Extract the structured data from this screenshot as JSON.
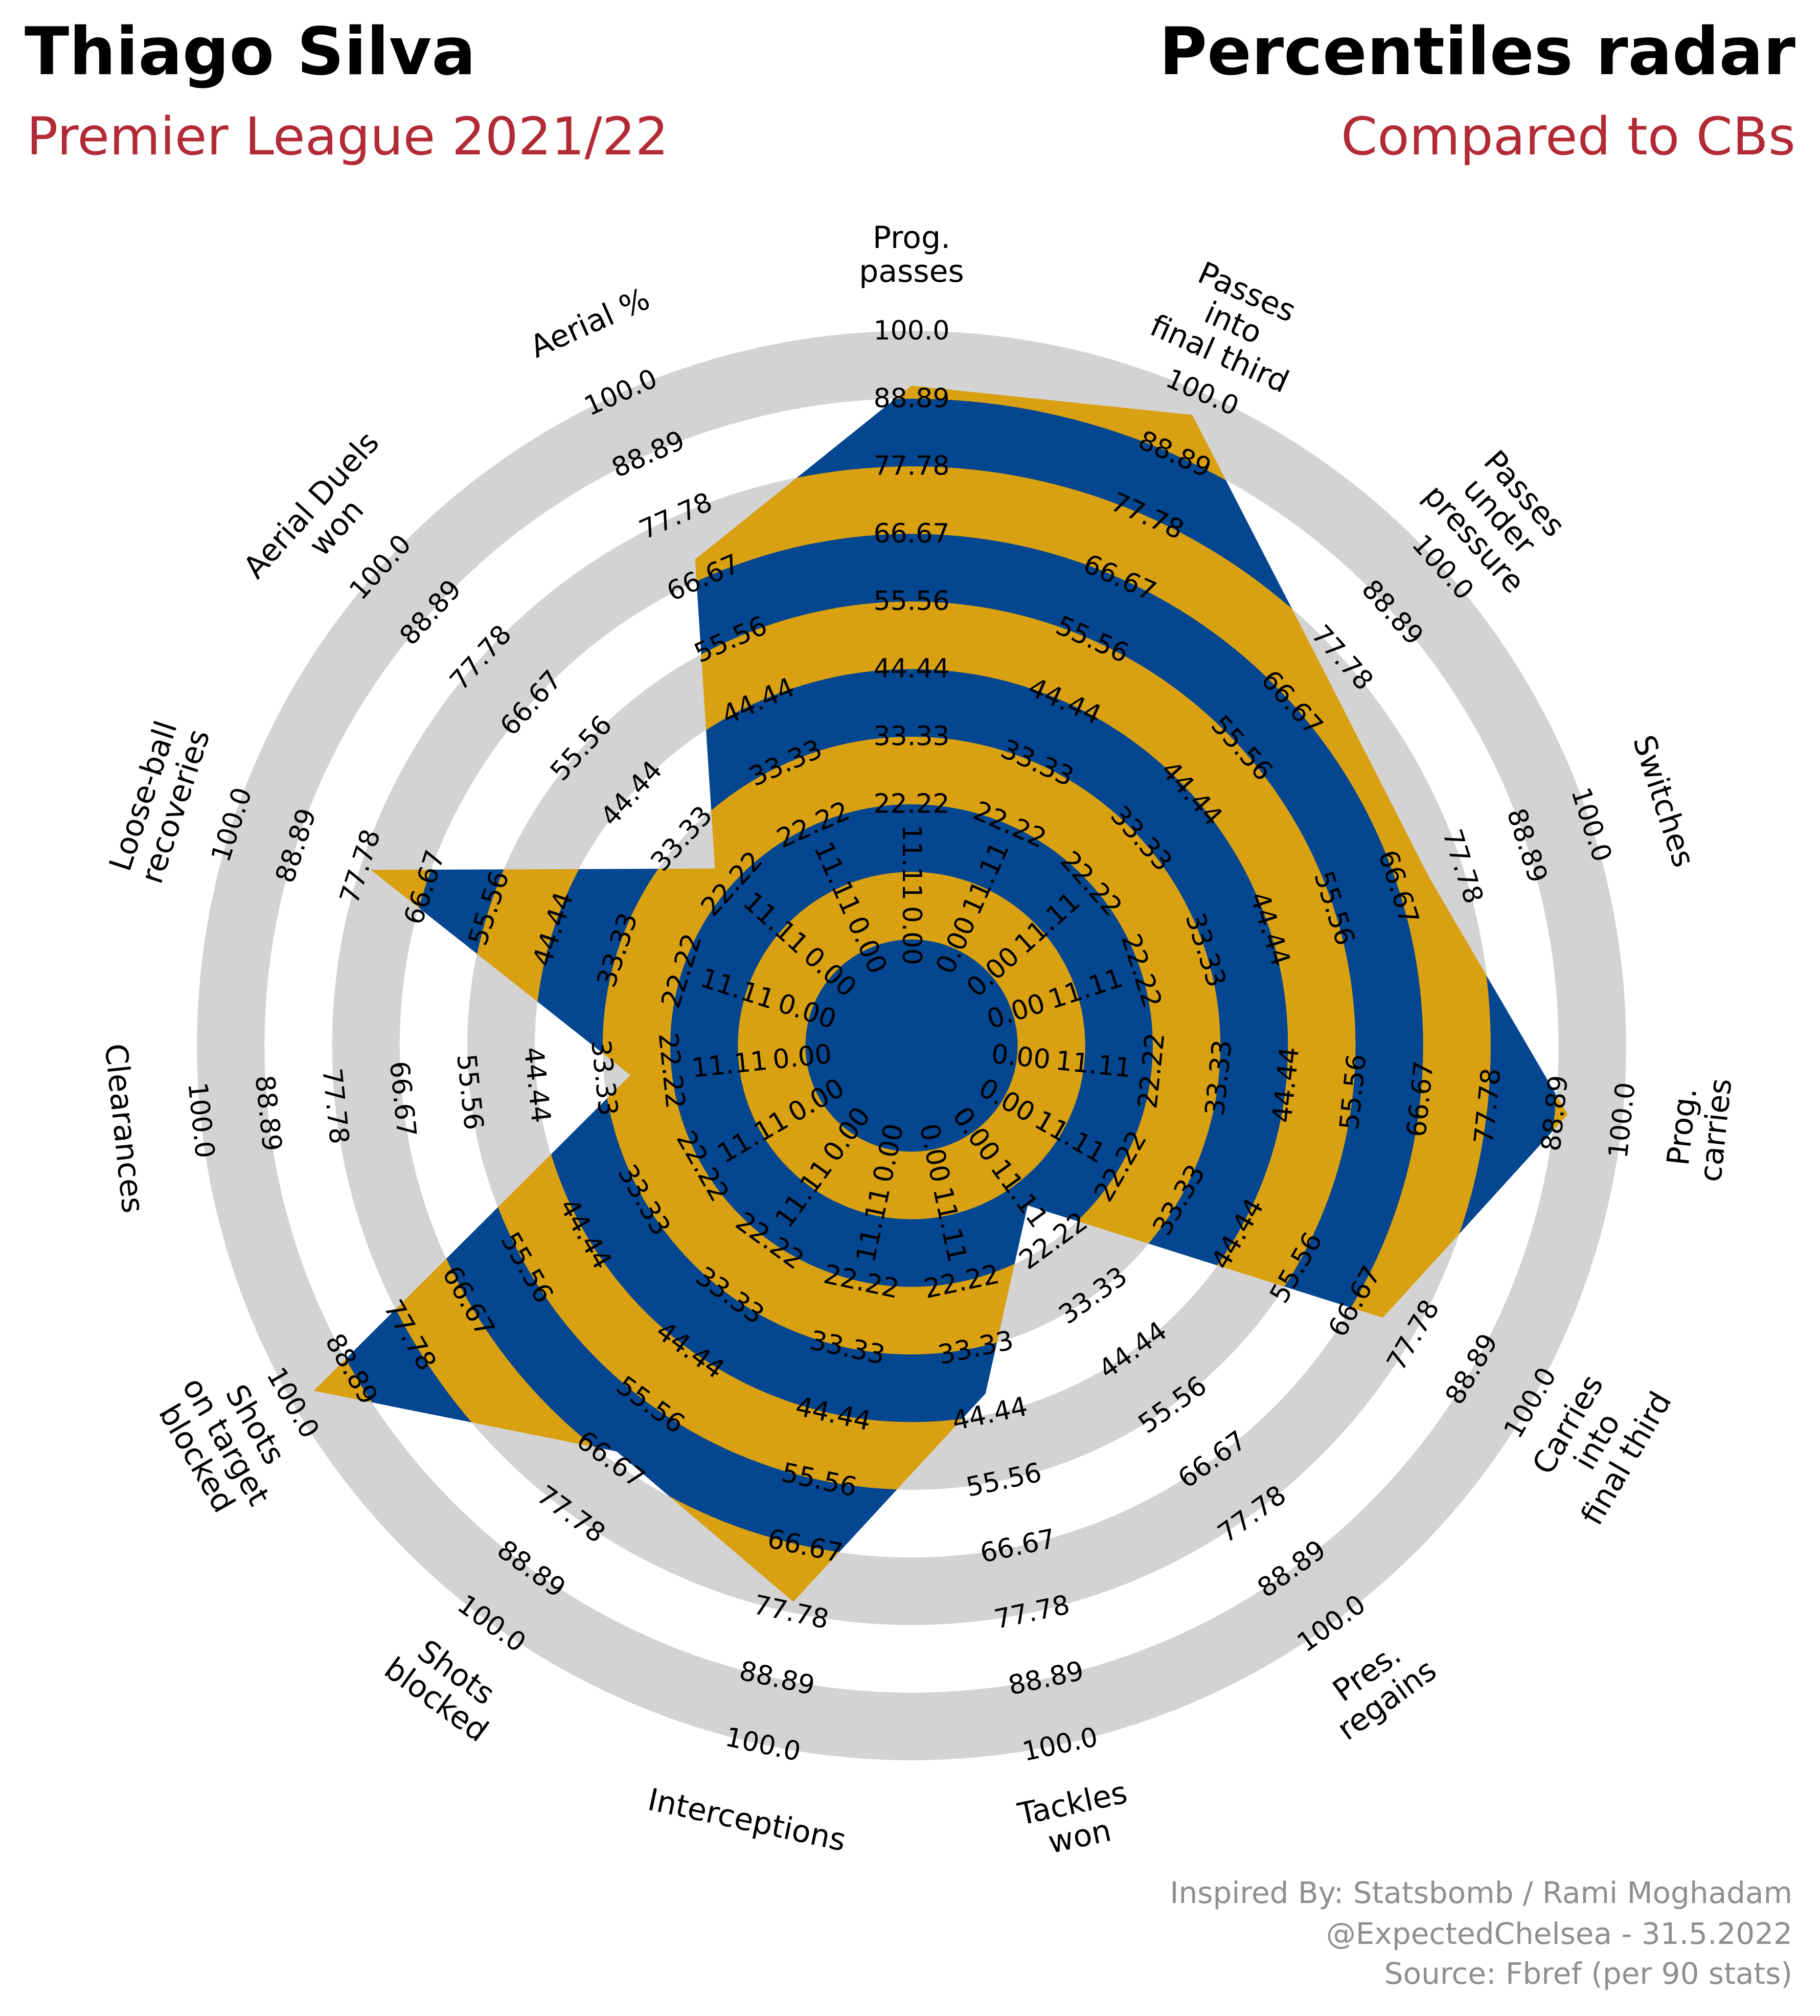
{
  "header": {
    "player": "Thiago Silva",
    "competition": "Premier League 2021/22",
    "chart_title": "Percentiles radar",
    "comparison": "Compared to CBs"
  },
  "footer": {
    "line1": "Inspired By: Statsbomb / Rami Moghadam",
    "line2": "@ExpectedChelsea - 31.5.2022",
    "line3": "Source: Fbref (per 90 stats)"
  },
  "colors": {
    "fill_a": "#04468f",
    "fill_b": "#d9a012",
    "ring": "#d3d3d3",
    "accent": "#b22a35",
    "footer": "#8e8e93"
  },
  "chart_data": {
    "type": "radar",
    "title": "Percentiles radar",
    "range": [
      0,
      100
    ],
    "ring_labels": [
      "0.00",
      "11.11",
      "22.22",
      "33.33",
      "44.44",
      "55.56",
      "66.67",
      "77.78",
      "88.89",
      "100.0"
    ],
    "parameters": [
      {
        "label": [
          "Prog.",
          "passes"
        ],
        "value": 91
      },
      {
        "label": [
          "Passes",
          "into",
          "final third"
        ],
        "value": 96
      },
      {
        "label": [
          "Passes",
          "under",
          "pressure"
        ],
        "value": 74
      },
      {
        "label": [
          "Switches"
        ],
        "value": 72
      },
      {
        "label": [
          "Prog.",
          "carries"
        ],
        "value": 91
      },
      {
        "label": [
          "Carries",
          "into",
          "final third"
        ],
        "value": 72
      },
      {
        "label": [
          "Pres.",
          "regains"
        ],
        "value": 15
      },
      {
        "label": [
          "Tackles",
          "won"
        ],
        "value": 41
      },
      {
        "label": [
          "Interceptions"
        ],
        "value": 76
      },
      {
        "label": [
          "Shots",
          "blocked"
        ],
        "value": 65
      },
      {
        "label": [
          "Shots",
          "on target",
          "blocked"
        ],
        "value": 96
      },
      {
        "label": [
          "Clearances"
        ],
        "value": 29
      },
      {
        "label": [
          "Loose-ball",
          "recoveries"
        ],
        "value": 76
      },
      {
        "label": [
          "Aerial Duels",
          "won"
        ],
        "value": 26
      },
      {
        "label": [
          "Aerial %"
        ],
        "value": 70
      }
    ]
  }
}
